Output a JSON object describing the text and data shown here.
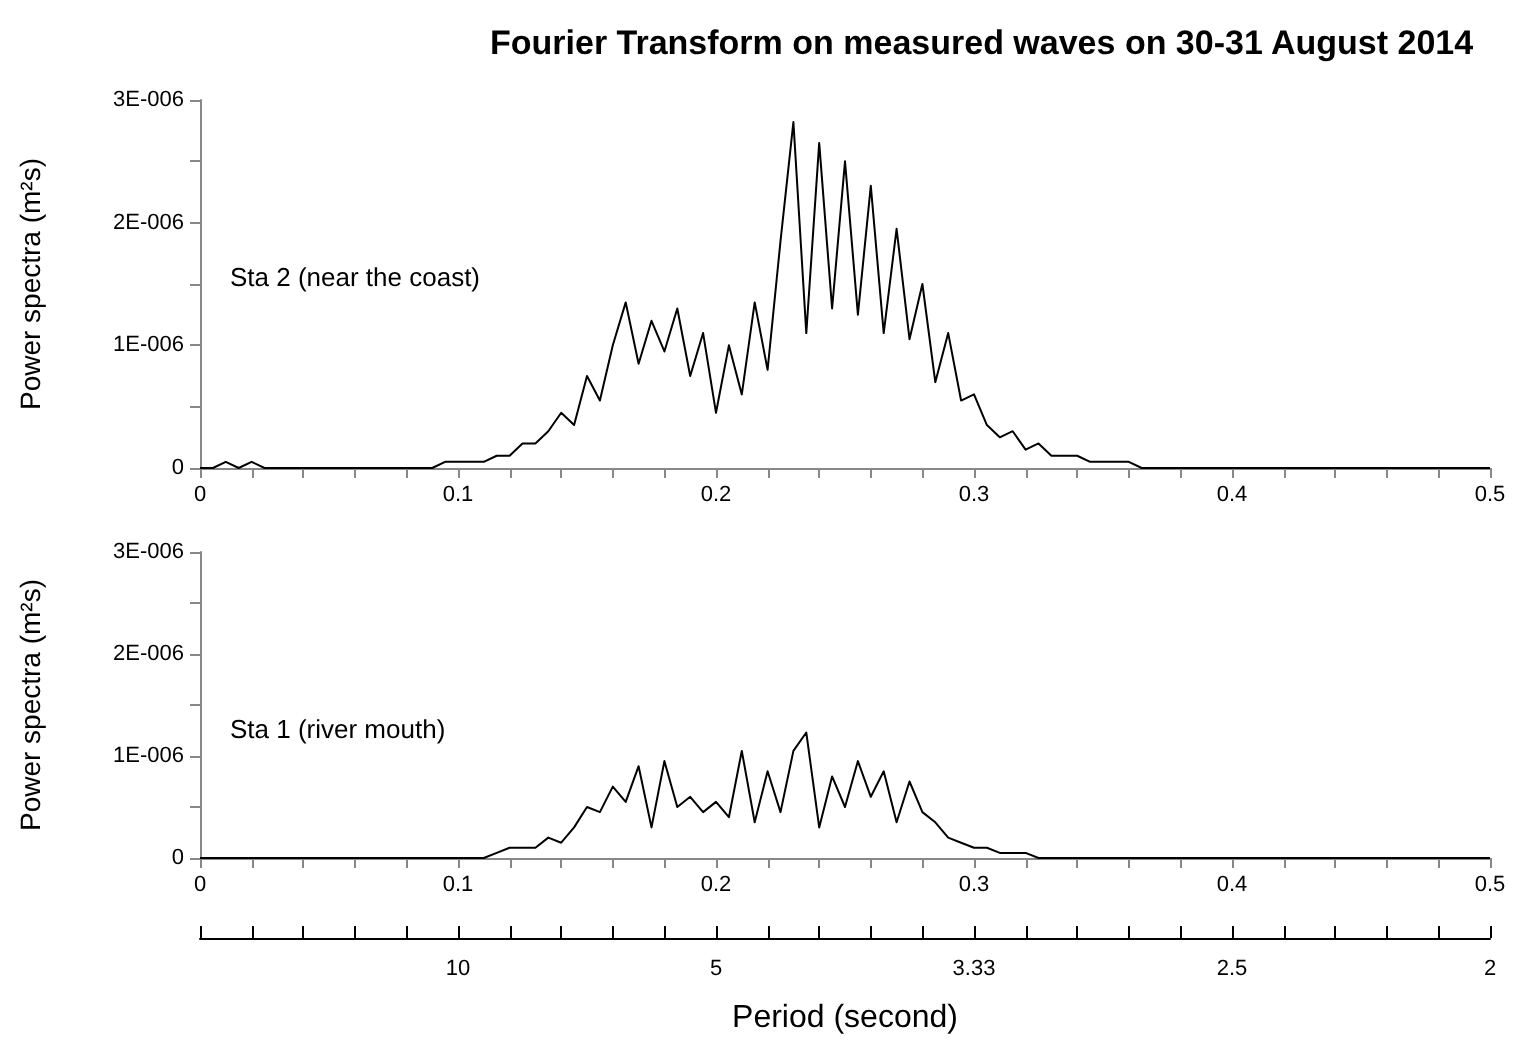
{
  "chart_data": [
    {
      "type": "line",
      "title": "Fourier Transform on measured waves on 30-31 August 2014",
      "ylabel": "Power spectra (m²s)",
      "annotations": [
        "Sta 2 (near the coast)"
      ],
      "marker": "none",
      "line_style": "solid",
      "grid": false,
      "xlim": [
        0,
        0.5
      ],
      "xticks": [
        0,
        {
          "value": 0.02,
          "label": null
        },
        {
          "value": 0.04,
          "label": null
        },
        {
          "value": 0.06,
          "label": null
        },
        {
          "value": 0.08,
          "label": null
        },
        0.1,
        {
          "value": 0.12,
          "label": null
        },
        {
          "value": 0.14,
          "label": null
        },
        {
          "value": 0.16,
          "label": null
        },
        {
          "value": 0.18,
          "label": null
        },
        0.2,
        {
          "value": 0.22,
          "label": null
        },
        {
          "value": 0.24,
          "label": null
        },
        {
          "value": 0.26,
          "label": null
        },
        {
          "value": 0.28,
          "label": null
        },
        0.3,
        {
          "value": 0.32,
          "label": null
        },
        {
          "value": 0.34,
          "label": null
        },
        {
          "value": 0.36,
          "label": null
        },
        {
          "value": 0.38,
          "label": null
        },
        0.4,
        {
          "value": 0.42,
          "label": null
        },
        {
          "value": 0.44,
          "label": null
        },
        {
          "value": 0.46,
          "label": null
        },
        {
          "value": 0.48,
          "label": null
        },
        0.5
      ],
      "ylim": [
        0,
        3e-06
      ],
      "yticks": [
        0,
        {
          "value": 5e-07,
          "label": null
        },
        {
          "value": 1e-06,
          "label": "1E-006"
        },
        {
          "value": 1.5e-06,
          "label": null
        },
        {
          "value": 2e-06,
          "label": "2E-006"
        },
        {
          "value": 2.5e-06,
          "label": null
        },
        {
          "value": 3e-06,
          "label": "3E-006"
        }
      ],
      "x": [
        0,
        0.005,
        0.01,
        0.015,
        0.02,
        0.025,
        0.03,
        0.035,
        0.04,
        0.045,
        0.05,
        0.055,
        0.06,
        0.065,
        0.07,
        0.075,
        0.08,
        0.085,
        0.09,
        0.095,
        0.1,
        0.105,
        0.11,
        0.115,
        0.12,
        0.125,
        0.13,
        0.135,
        0.14,
        0.145,
        0.15,
        0.155,
        0.16,
        0.165,
        0.17,
        0.175,
        0.18,
        0.185,
        0.19,
        0.195,
        0.2,
        0.205,
        0.21,
        0.215,
        0.22,
        0.225,
        0.23,
        0.235,
        0.24,
        0.245,
        0.25,
        0.255,
        0.26,
        0.265,
        0.27,
        0.275,
        0.28,
        0.285,
        0.29,
        0.295,
        0.3,
        0.305,
        0.31,
        0.315,
        0.32,
        0.325,
        0.33,
        0.335,
        0.34,
        0.345,
        0.35,
        0.355,
        0.36,
        0.365,
        0.37,
        0.375,
        0.38,
        0.385,
        0.39,
        0.395,
        0.4,
        0.405,
        0.41,
        0.415,
        0.42,
        0.425,
        0.43,
        0.435,
        0.44,
        0.445,
        0.45,
        0.455,
        0.46,
        0.465,
        0.47,
        0.475,
        0.48,
        0.485,
        0.49,
        0.495,
        0.5
      ],
      "series": [
        {
          "color": "#000000",
          "values": [
            0,
            0,
            5e-08,
            0,
            5e-08,
            0,
            0,
            0,
            0,
            0,
            0,
            0,
            0,
            0,
            0,
            0,
            0,
            0,
            0,
            5e-08,
            5e-08,
            5e-08,
            5e-08,
            1e-07,
            1e-07,
            2e-07,
            2e-07,
            3e-07,
            4.5e-07,
            3.5e-07,
            7.5e-07,
            5.5e-07,
            1e-06,
            1.35e-06,
            8.5e-07,
            1.2e-06,
            9.5e-07,
            1.3e-06,
            7.5e-07,
            1.1e-06,
            4.5e-07,
            1e-06,
            6e-07,
            1.35e-06,
            8e-07,
            1.85e-06,
            2.82e-06,
            1.1e-06,
            2.65e-06,
            1.3e-06,
            2.5e-06,
            1.25e-06,
            2.3e-06,
            1.1e-06,
            1.95e-06,
            1.05e-06,
            1.5e-06,
            7e-07,
            1.1e-06,
            5.5e-07,
            6e-07,
            3.5e-07,
            2.5e-07,
            3e-07,
            1.5e-07,
            2e-07,
            1e-07,
            1e-07,
            1e-07,
            5e-08,
            5e-08,
            5e-08,
            5e-08,
            0,
            0,
            0,
            0,
            0,
            0,
            0,
            0,
            0,
            0,
            0,
            0,
            0,
            0,
            0,
            0,
            0,
            0,
            0,
            0,
            0,
            0,
            0,
            0,
            0,
            0,
            0,
            0
          ]
        }
      ]
    },
    {
      "type": "line",
      "ylabel": "Power spectra (m²s)",
      "annotations": [
        "Sta 1 (river mouth)",
        {
          "text": "10",
          "x": 0.1
        },
        {
          "text": "5",
          "x": 0.2
        },
        {
          "text": "3.33",
          "x": 0.3
        },
        {
          "text": "2.5",
          "x": 0.4
        },
        {
          "text": "2",
          "x": 0.5
        }
      ],
      "marker": "none",
      "line_style": "solid",
      "grid": false,
      "xlim": [
        0,
        0.5
      ],
      "xticks": [
        0,
        {
          "value": 0.02,
          "label": null
        },
        {
          "value": 0.04,
          "label": null
        },
        {
          "value": 0.06,
          "label": null
        },
        {
          "value": 0.08,
          "label": null
        },
        0.1,
        {
          "value": 0.12,
          "label": null
        },
        {
          "value": 0.14,
          "label": null
        },
        {
          "value": 0.16,
          "label": null
        },
        {
          "value": 0.18,
          "label": null
        },
        0.2,
        {
          "value": 0.22,
          "label": null
        },
        {
          "value": 0.24,
          "label": null
        },
        {
          "value": 0.26,
          "label": null
        },
        {
          "value": 0.28,
          "label": null
        },
        0.3,
        {
          "value": 0.32,
          "label": null
        },
        {
          "value": 0.34,
          "label": null
        },
        {
          "value": 0.36,
          "label": null
        },
        {
          "value": 0.38,
          "label": null
        },
        0.4,
        {
          "value": 0.42,
          "label": null
        },
        {
          "value": 0.44,
          "label": null
        },
        {
          "value": 0.46,
          "label": null
        },
        {
          "value": 0.48,
          "label": null
        },
        0.5
      ],
      "x2label": "Period (second)",
      "ylim": [
        0,
        3e-06
      ],
      "yticks": [
        0,
        {
          "value": 5e-07,
          "label": null
        },
        {
          "value": 1e-06,
          "label": "1E-006"
        },
        {
          "value": 1.5e-06,
          "label": null
        },
        {
          "value": 2e-06,
          "label": "2E-006"
        },
        {
          "value": 2.5e-06,
          "label": null
        },
        {
          "value": 3e-06,
          "label": "3E-006"
        }
      ],
      "x": [
        0,
        0.005,
        0.01,
        0.015,
        0.02,
        0.025,
        0.03,
        0.035,
        0.04,
        0.045,
        0.05,
        0.055,
        0.06,
        0.065,
        0.07,
        0.075,
        0.08,
        0.085,
        0.09,
        0.095,
        0.1,
        0.105,
        0.11,
        0.115,
        0.12,
        0.125,
        0.13,
        0.135,
        0.14,
        0.145,
        0.15,
        0.155,
        0.16,
        0.165,
        0.17,
        0.175,
        0.18,
        0.185,
        0.19,
        0.195,
        0.2,
        0.205,
        0.21,
        0.215,
        0.22,
        0.225,
        0.23,
        0.235,
        0.24,
        0.245,
        0.25,
        0.255,
        0.26,
        0.265,
        0.27,
        0.275,
        0.28,
        0.285,
        0.29,
        0.295,
        0.3,
        0.305,
        0.31,
        0.315,
        0.32,
        0.325,
        0.33,
        0.335,
        0.34,
        0.345,
        0.35,
        0.355,
        0.36,
        0.365,
        0.37,
        0.375,
        0.38,
        0.385,
        0.39,
        0.395,
        0.4,
        0.405,
        0.41,
        0.415,
        0.42,
        0.425,
        0.43,
        0.435,
        0.44,
        0.445,
        0.45,
        0.455,
        0.46,
        0.465,
        0.47,
        0.475,
        0.48,
        0.485,
        0.49,
        0.495,
        0.5
      ],
      "series": [
        {
          "color": "#000000",
          "values": [
            0,
            0,
            0,
            0,
            0,
            0,
            0,
            0,
            0,
            0,
            0,
            0,
            0,
            0,
            0,
            0,
            0,
            0,
            0,
            0,
            0,
            0,
            0,
            5e-08,
            1e-07,
            1e-07,
            1e-07,
            2e-07,
            1.5e-07,
            3e-07,
            5e-07,
            4.5e-07,
            7e-07,
            5.5e-07,
            9e-07,
            3e-07,
            9.5e-07,
            5e-07,
            6e-07,
            4.5e-07,
            5.5e-07,
            4e-07,
            1.05e-06,
            3.5e-07,
            8.5e-07,
            4.5e-07,
            1.05e-06,
            1.23e-06,
            3e-07,
            8e-07,
            5e-07,
            9.5e-07,
            6e-07,
            8.5e-07,
            3.5e-07,
            7.5e-07,
            4.5e-07,
            3.5e-07,
            2e-07,
            1.5e-07,
            1e-07,
            1e-07,
            5e-08,
            5e-08,
            5e-08,
            0,
            0,
            0,
            0,
            0,
            0,
            0,
            0,
            0,
            0,
            0,
            0,
            0,
            0,
            0,
            0,
            0,
            0,
            0,
            0,
            0,
            0,
            0,
            0,
            0,
            0,
            0,
            0,
            0,
            0,
            0,
            0,
            0,
            0,
            0,
            0
          ]
        }
      ]
    }
  ]
}
